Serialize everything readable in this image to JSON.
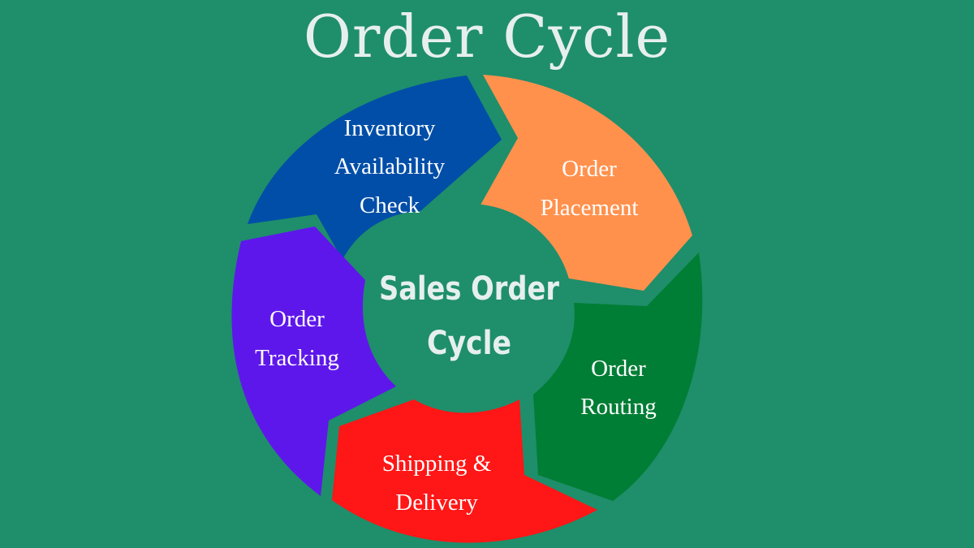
{
  "title": "Order Cycle",
  "hub": {
    "line1": "Sales Order",
    "line2": "Cycle"
  },
  "segments": [
    {
      "line1": "Inventory",
      "line2": "Availability",
      "line3": "Check",
      "color": "#004ea8"
    },
    {
      "line1": "Order",
      "line2": "Placement",
      "color": "#ff914d"
    },
    {
      "line1": "Order",
      "line2": "Routing",
      "color": "#017e35"
    },
    {
      "line1": "Shipping &",
      "line2": "Delivery",
      "color": "#ff1616"
    },
    {
      "line1": "Order",
      "line2": "Tracking",
      "color": "#5e17eb"
    }
  ],
  "colors": {
    "background": "#1f8e6b",
    "hub": "#1f8e6b",
    "title": "#e6efee"
  }
}
